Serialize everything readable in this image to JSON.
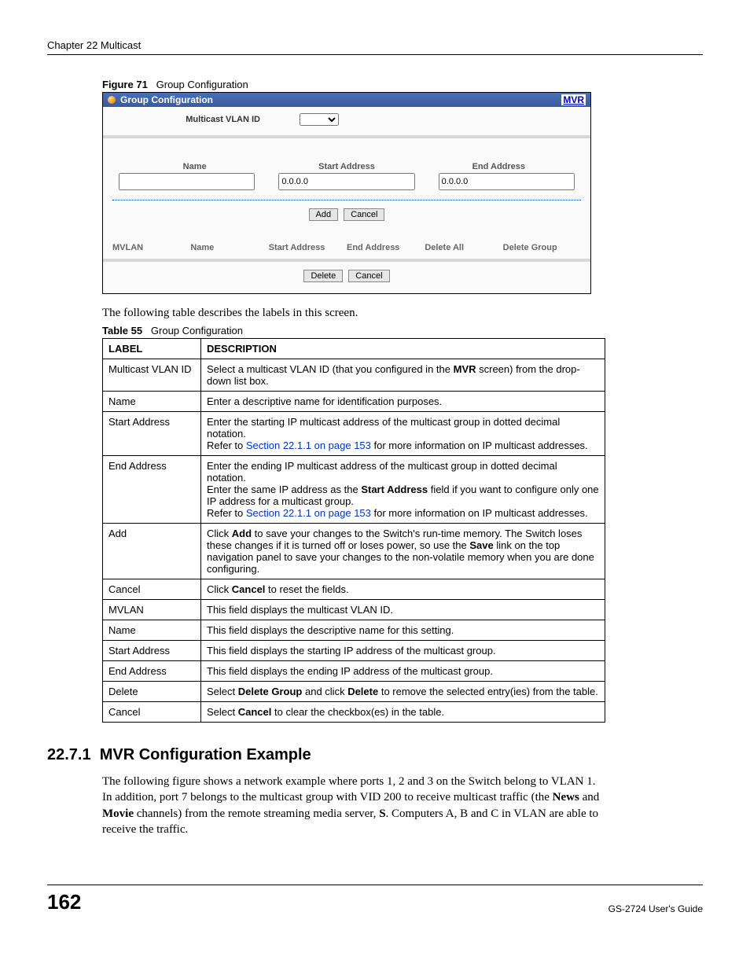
{
  "header": {
    "chapter": "Chapter 22 Multicast"
  },
  "figure": {
    "prefix": "Figure 71",
    "title": "Group Configuration",
    "titlebar": "Group Configuration",
    "mvr_link": "MVR",
    "vlan_label": "Multicast VLAN ID",
    "col_name": "Name",
    "col_start": "Start Address",
    "col_end": "End Address",
    "start_value": "0.0.0.0",
    "end_value": "0.0.0.0",
    "btn_add": "Add",
    "btn_cancel": "Cancel",
    "list_headers": [
      "MVLAN",
      "Name",
      "Start Address",
      "End Address",
      "Delete All",
      "Delete Group"
    ],
    "btn_delete": "Delete",
    "btn_cancel2": "Cancel"
  },
  "following": "The following table describes the labels in this screen.",
  "table_caption": {
    "prefix": "Table 55",
    "title": "Group Configuration"
  },
  "table_headers": [
    "LABEL",
    "DESCRIPTION"
  ],
  "rows": [
    {
      "label": "Multicast VLAN ID",
      "desc_parts": [
        {
          "t": "Select a multicast VLAN ID (that you configured in the "
        },
        {
          "t": "MVR",
          "b": true
        },
        {
          "t": " screen) from the drop-down list box."
        }
      ]
    },
    {
      "label": "Name",
      "desc_parts": [
        {
          "t": "Enter a descriptive name for identification purposes."
        }
      ]
    },
    {
      "label": "Start Address",
      "desc_parts": [
        {
          "t": "Enter the starting IP multicast address of the multicast group in dotted decimal notation."
        },
        {
          "br": true
        },
        {
          "t": "Refer to "
        },
        {
          "t": "Section 22.1.1 on page 153",
          "link": true
        },
        {
          "t": " for more information on IP multicast addresses."
        }
      ]
    },
    {
      "label": "End Address",
      "desc_parts": [
        {
          "t": "Enter the ending IP multicast address of the multicast group in dotted decimal notation."
        },
        {
          "br": true
        },
        {
          "t": "Enter the same IP address as the "
        },
        {
          "t": "Start Address",
          "b": true
        },
        {
          "t": " field if you want to configure only one IP address for a multicast group."
        },
        {
          "br": true
        },
        {
          "t": "Refer to "
        },
        {
          "t": "Section 22.1.1 on page 153",
          "link": true
        },
        {
          "t": " for more information on IP multicast addresses."
        }
      ]
    },
    {
      "label": "Add",
      "desc_parts": [
        {
          "t": "Click "
        },
        {
          "t": "Add",
          "b": true
        },
        {
          "t": " to save your changes to the Switch's run-time memory. The Switch loses these changes if it is turned off or loses power, so use the "
        },
        {
          "t": "Save",
          "b": true
        },
        {
          "t": " link on the top navigation panel to save your changes to the non-volatile memory when you are done configuring."
        }
      ]
    },
    {
      "label": "Cancel",
      "desc_parts": [
        {
          "t": "Click "
        },
        {
          "t": "Cancel",
          "b": true
        },
        {
          "t": " to reset the fields."
        }
      ]
    },
    {
      "label": "MVLAN",
      "desc_parts": [
        {
          "t": "This field displays the multicast VLAN ID."
        }
      ]
    },
    {
      "label": "Name",
      "desc_parts": [
        {
          "t": "This field displays the descriptive name for this setting."
        }
      ]
    },
    {
      "label": "Start Address",
      "desc_parts": [
        {
          "t": "This field displays the starting IP address of the multicast group."
        }
      ]
    },
    {
      "label": "End Address",
      "desc_parts": [
        {
          "t": "This field displays the ending IP address of the multicast group."
        }
      ]
    },
    {
      "label": "Delete",
      "desc_parts": [
        {
          "t": "Select "
        },
        {
          "t": "Delete Group",
          "b": true
        },
        {
          "t": " and click "
        },
        {
          "t": "Delete",
          "b": true
        },
        {
          "t": " to remove the selected entry(ies) from the table."
        }
      ]
    },
    {
      "label": "Cancel",
      "desc_parts": [
        {
          "t": "Select "
        },
        {
          "t": "Cancel",
          "b": true
        },
        {
          "t": " to clear the checkbox(es) in the table."
        }
      ]
    }
  ],
  "section": {
    "number": "22.7.1",
    "title": "MVR Configuration Example"
  },
  "para_parts": [
    {
      "t": "The following figure shows a network example where ports 1, 2 and 3 on the Switch belong to VLAN 1. In addition, port 7 belongs to the multicast group with VID 200 to receive multicast traffic (the "
    },
    {
      "t": "News",
      "b": true
    },
    {
      "t": " and "
    },
    {
      "t": "Movie",
      "b": true
    },
    {
      "t": " channels) from the remote streaming media server, "
    },
    {
      "t": "S",
      "b": true
    },
    {
      "t": ". Computers A, B and C in VLAN are able to receive the traffic."
    }
  ],
  "footer": {
    "page": "162",
    "guide": "GS-2724 User's Guide"
  }
}
